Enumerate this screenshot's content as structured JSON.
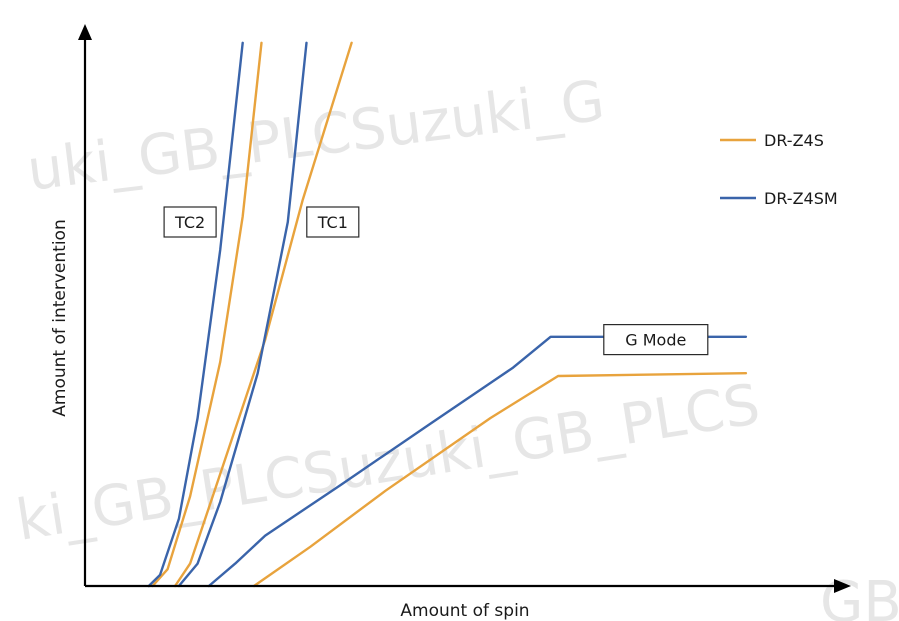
{
  "watermark": {
    "text_1": "uki_GB_PLCSuzuki_G",
    "text_2": "ki_GB_PLCSuzuki_GB_PLCS",
    "text_3": "GB"
  },
  "chart_data": {
    "type": "line",
    "xlabel": "Amount of spin",
    "ylabel": "Amount of intervention",
    "xlim": [
      0,
      100
    ],
    "ylim": [
      0,
      100
    ],
    "grid": false,
    "legend_position": "top-right",
    "legend": [
      {
        "name": "DR-Z4S",
        "color": "#e8a33d"
      },
      {
        "name": "DR-Z4SM",
        "color": "#3a64aa"
      }
    ],
    "annotations": [
      {
        "text": "TC2",
        "x": 14,
        "y": 65
      },
      {
        "text": "TC1",
        "x": 33,
        "y": 65
      },
      {
        "text": "G Mode",
        "x": 76,
        "y": 44
      }
    ],
    "series": [
      {
        "name": "DR-Z4S",
        "mode": "TC2",
        "color": "#e8a33d",
        "points": [
          [
            9,
            0
          ],
          [
            11,
            3
          ],
          [
            14,
            16
          ],
          [
            18,
            40
          ],
          [
            21,
            66
          ],
          [
            23.5,
            97
          ]
        ]
      },
      {
        "name": "DR-Z4SM",
        "mode": "TC2",
        "color": "#3a64aa",
        "points": [
          [
            8.5,
            0
          ],
          [
            10,
            2
          ],
          [
            12.5,
            12
          ],
          [
            15,
            30
          ],
          [
            18,
            60
          ],
          [
            21,
            97
          ]
        ]
      },
      {
        "name": "DR-Z4S",
        "mode": "TC1",
        "color": "#e8a33d",
        "points": [
          [
            12,
            0
          ],
          [
            14,
            4
          ],
          [
            18,
            20
          ],
          [
            24,
            44
          ],
          [
            29,
            69
          ],
          [
            35.5,
            97
          ]
        ]
      },
      {
        "name": "DR-Z4SM",
        "mode": "TC1",
        "color": "#3a64aa",
        "points": [
          [
            12.5,
            0
          ],
          [
            15,
            4
          ],
          [
            18,
            15
          ],
          [
            23,
            38
          ],
          [
            27,
            65
          ],
          [
            29.5,
            97
          ]
        ]
      },
      {
        "name": "DR-Z4S",
        "mode": "G Mode",
        "color": "#e8a33d",
        "points": [
          [
            22.5,
            0
          ],
          [
            30,
            7
          ],
          [
            40,
            17
          ],
          [
            54,
            30
          ],
          [
            63,
            37.5
          ],
          [
            88,
            38
          ]
        ]
      },
      {
        "name": "DR-Z4SM",
        "mode": "G Mode",
        "color": "#3a64aa",
        "points": [
          [
            16.5,
            0
          ],
          [
            20,
            4
          ],
          [
            24,
            9
          ],
          [
            34,
            18
          ],
          [
            46,
            29
          ],
          [
            57,
            39
          ],
          [
            62,
            44.5
          ],
          [
            88,
            44.5
          ]
        ]
      }
    ]
  }
}
